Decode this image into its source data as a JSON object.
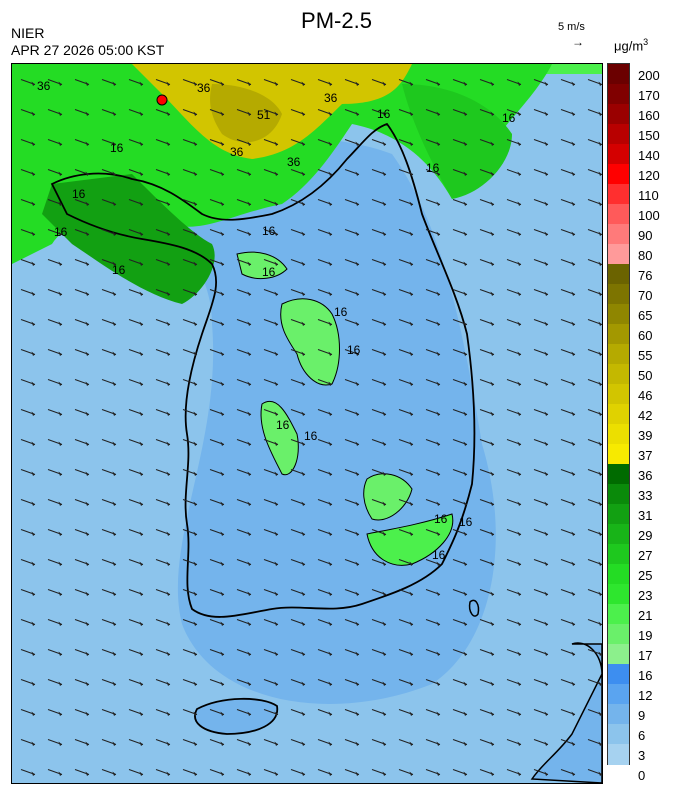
{
  "header": {
    "title": "PM-2.5",
    "agency": "NIER",
    "datetime": "APR 27 2026 05:00 KST",
    "wind_scale": "5 m/s",
    "wind_arrow_glyph": "→",
    "unit_base": "μg/m",
    "unit_exp": "3"
  },
  "legend": {
    "ticks": [
      "200",
      "170",
      "160",
      "150",
      "140",
      "120",
      "110",
      "100",
      "90",
      "80",
      "76",
      "70",
      "65",
      "60",
      "55",
      "50",
      "46",
      "42",
      "39",
      "37",
      "36",
      "33",
      "31",
      "29",
      "27",
      "25",
      "23",
      "21",
      "19",
      "17",
      "16",
      "12",
      "9",
      "6",
      "3",
      "0"
    ],
    "colors": [
      "#6b0000",
      "#800000",
      "#9a0000",
      "#b80000",
      "#d40000",
      "#ff0000",
      "#ff2f2f",
      "#ff5a5a",
      "#ff7a7a",
      "#ff9a9a",
      "#6b6300",
      "#7d7400",
      "#8f8600",
      "#a39800",
      "#b5aa00",
      "#c4b800",
      "#d2c500",
      "#e0d200",
      "#ecdf00",
      "#f7ea00",
      "#006b00",
      "#0a8a0a",
      "#12a012",
      "#18b418",
      "#1ec81e",
      "#24dc24",
      "#2ee62e",
      "#4cf04c",
      "#6af06a",
      "#8cf08c",
      "#3d8ef0",
      "#5aa4f0",
      "#74b4ec",
      "#8cc4ec",
      "#a6d2f0"
    ]
  },
  "map": {
    "contour_labels": [
      "36",
      "36",
      "36",
      "51",
      "36",
      "36",
      "16",
      "16",
      "16",
      "16",
      "16",
      "16",
      "16",
      "16",
      "16",
      "16",
      "16",
      "16",
      "16",
      "16",
      "16",
      "16"
    ],
    "wind_field": "weak northwesterly"
  }
}
